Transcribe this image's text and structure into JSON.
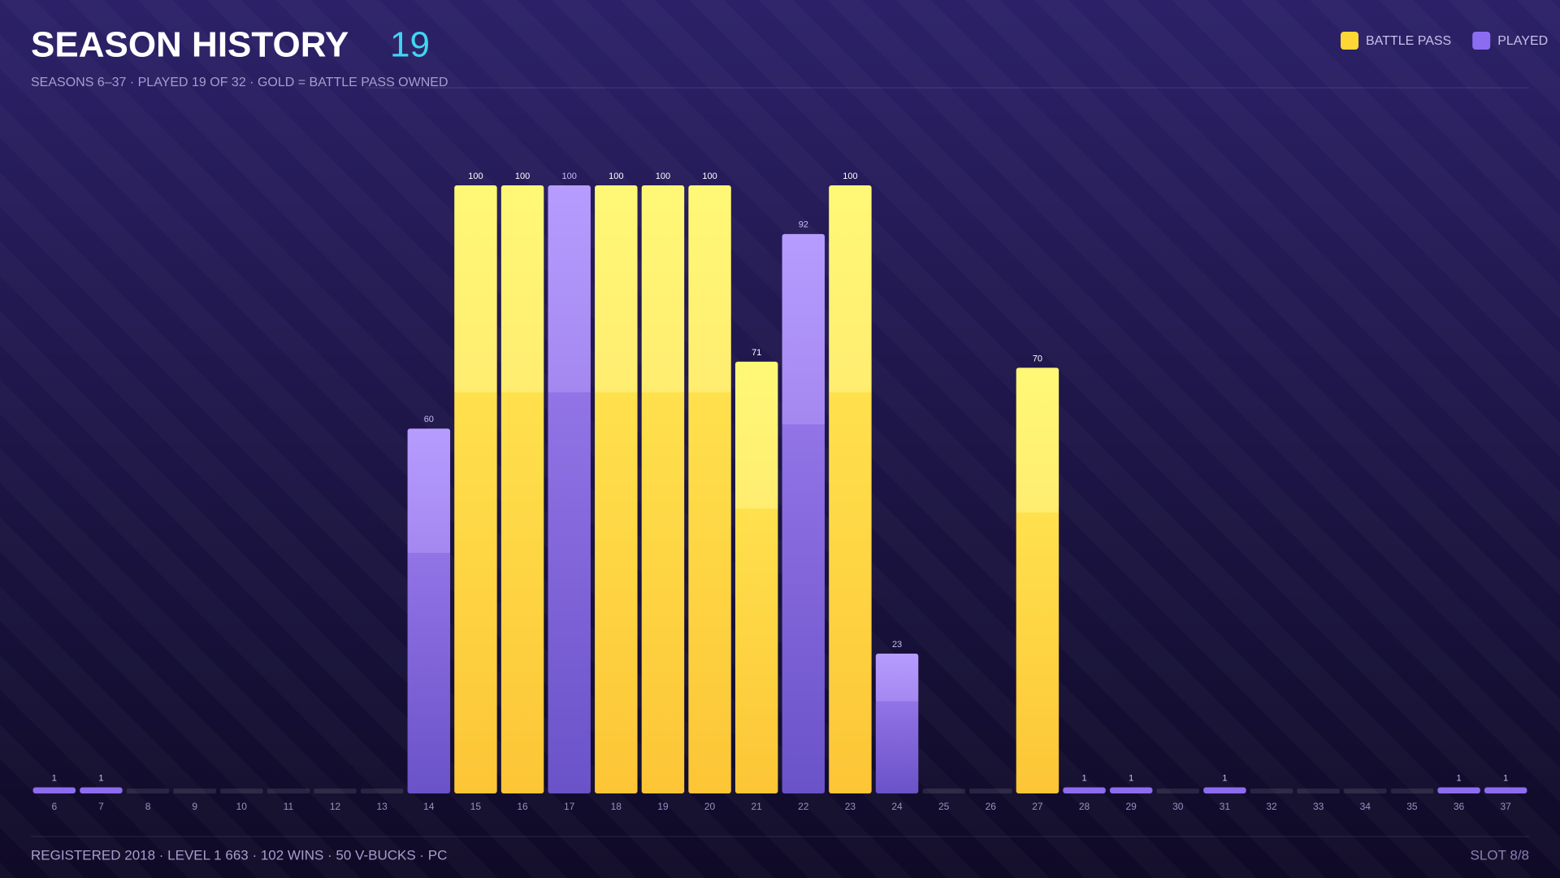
{
  "header": {
    "title": "SEASON HISTORY",
    "count": "19",
    "subtitle": "SEASONS 6–37 · PLAYED 19 OF 32 · GOLD = BATTLE PASS OWNED"
  },
  "chart_data": {
    "type": "bar",
    "stacked": false,
    "categories": [
      "6",
      "7",
      "8",
      "9",
      "10",
      "11",
      "12",
      "13",
      "14",
      "15",
      "16",
      "17",
      "18",
      "19",
      "20",
      "21",
      "22",
      "23",
      "24",
      "25",
      "26",
      "27",
      "28",
      "29",
      "30",
      "31",
      "32",
      "33",
      "34",
      "35",
      "36",
      "37"
    ],
    "series": [
      {
        "name": "BATTLE PASS",
        "color": "#fdd835",
        "values": [
          null,
          null,
          null,
          null,
          null,
          null,
          null,
          null,
          null,
          100,
          100,
          null,
          100,
          100,
          100,
          71,
          null,
          100,
          null,
          null,
          null,
          70,
          null,
          null,
          null,
          null,
          null,
          null,
          null,
          null,
          null,
          null
        ]
      },
      {
        "name": "PLAYED",
        "color": "#8c6cf0",
        "values": [
          1,
          1,
          null,
          null,
          null,
          null,
          null,
          null,
          60,
          null,
          null,
          100,
          null,
          null,
          null,
          null,
          92,
          null,
          23,
          null,
          null,
          null,
          1,
          1,
          null,
          1,
          null,
          null,
          null,
          null,
          1,
          1
        ]
      }
    ],
    "ylim": [
      0,
      100
    ],
    "legend": "top-right"
  },
  "footer": {
    "stats": "REGISTERED 2018 · LEVEL 1 663 · 102 WINS · 50 V-BUCKS · PC",
    "slot": "SLOT 8/8"
  }
}
